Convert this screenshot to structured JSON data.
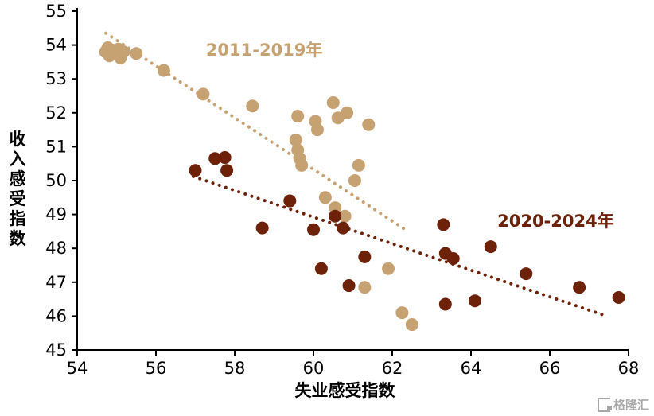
{
  "chart_data": {
    "type": "scatter",
    "title": "",
    "xlabel": "失业感受指数",
    "ylabel": "收入感受指数",
    "xlim": [
      54,
      68
    ],
    "ylim": [
      45,
      55
    ],
    "x_ticks": [
      54,
      56,
      58,
      60,
      62,
      64,
      66,
      68
    ],
    "y_ticks": [
      45,
      46,
      47,
      48,
      49,
      50,
      51,
      52,
      53,
      54,
      55
    ],
    "grid": false,
    "legend_position": "inline-annotations",
    "series": [
      {
        "name": "2011-2019年",
        "color": "#C6A172",
        "marker_radius": 8,
        "points": [
          [
            54.72,
            53.8
          ],
          [
            54.78,
            53.92
          ],
          [
            54.82,
            53.68
          ],
          [
            54.9,
            53.85
          ],
          [
            54.98,
            53.75
          ],
          [
            55.05,
            53.88
          ],
          [
            55.1,
            53.62
          ],
          [
            55.18,
            53.8
          ],
          [
            55.5,
            53.75
          ],
          [
            56.2,
            53.25
          ],
          [
            57.2,
            52.55
          ],
          [
            58.45,
            52.2
          ],
          [
            59.6,
            51.9
          ],
          [
            59.55,
            51.2
          ],
          [
            59.6,
            50.9
          ],
          [
            59.65,
            50.65
          ],
          [
            59.7,
            50.45
          ],
          [
            60.05,
            51.75
          ],
          [
            60.1,
            51.5
          ],
          [
            60.5,
            52.3
          ],
          [
            60.62,
            51.85
          ],
          [
            60.85,
            52.0
          ],
          [
            61.4,
            51.65
          ],
          [
            61.15,
            50.45
          ],
          [
            61.05,
            50.0
          ],
          [
            60.3,
            49.5
          ],
          [
            60.55,
            49.2
          ],
          [
            60.8,
            48.95
          ],
          [
            61.3,
            46.85
          ],
          [
            61.9,
            47.4
          ],
          [
            62.25,
            46.1
          ],
          [
            62.5,
            45.75
          ]
        ],
        "trendline": {
          "x1": 54.73,
          "y1": 54.35,
          "x2": 62.4,
          "y2": 48.5
        },
        "label": {
          "text": "2011-2019年",
          "x": 58.75,
          "y": 53.85
        }
      },
      {
        "name": "2020-2024年",
        "color": "#6D2109",
        "marker_radius": 8,
        "points": [
          [
            57.0,
            50.3
          ],
          [
            57.5,
            50.65
          ],
          [
            57.75,
            50.68
          ],
          [
            57.8,
            50.3
          ],
          [
            58.7,
            48.6
          ],
          [
            59.4,
            49.4
          ],
          [
            60.0,
            48.55
          ],
          [
            60.2,
            47.4
          ],
          [
            60.55,
            48.95
          ],
          [
            60.75,
            48.6
          ],
          [
            60.9,
            46.9
          ],
          [
            61.3,
            47.75
          ],
          [
            63.3,
            48.7
          ],
          [
            63.35,
            47.85
          ],
          [
            63.55,
            47.7
          ],
          [
            63.35,
            46.35
          ],
          [
            64.1,
            46.45
          ],
          [
            64.5,
            48.05
          ],
          [
            65.4,
            47.25
          ],
          [
            66.75,
            46.85
          ],
          [
            67.75,
            46.55
          ]
        ],
        "trendline": {
          "x1": 56.95,
          "y1": 50.12,
          "x2": 67.45,
          "y2": 46.0
        },
        "label": {
          "text": "2020-2024年",
          "x": 66.15,
          "y": 48.8
        }
      }
    ]
  },
  "watermark": {
    "text": "格隆汇"
  }
}
